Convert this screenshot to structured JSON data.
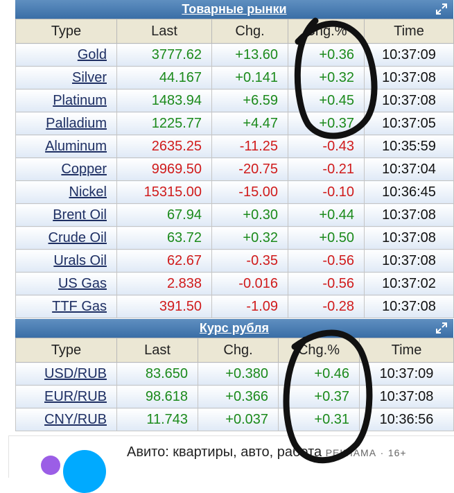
{
  "commodities": {
    "title": "Товарные рынки",
    "expand_icon": "expand-icon",
    "headers": [
      "Type",
      "Last",
      "Chg.",
      "Chg.%",
      "Time"
    ],
    "rows": [
      {
        "type": "Gold",
        "last": "3777.62",
        "chg": "+13.60",
        "pct": "+0.36",
        "time": "10:37:09",
        "dir": "pos"
      },
      {
        "type": "Silver",
        "last": "44.167",
        "chg": "+0.141",
        "pct": "+0.32",
        "time": "10:37:08",
        "dir": "pos"
      },
      {
        "type": "Platinum",
        "last": "1483.94",
        "chg": "+6.59",
        "pct": "+0.45",
        "time": "10:37:08",
        "dir": "pos"
      },
      {
        "type": "Palladium",
        "last": "1225.77",
        "chg": "+4.47",
        "pct": "+0.37",
        "time": "10:37:05",
        "dir": "pos"
      },
      {
        "type": "Aluminum",
        "last": "2635.25",
        "chg": "-11.25",
        "pct": "-0.43",
        "time": "10:35:59",
        "dir": "neg"
      },
      {
        "type": "Copper",
        "last": "9969.50",
        "chg": "-20.75",
        "pct": "-0.21",
        "time": "10:37:04",
        "dir": "neg"
      },
      {
        "type": "Nickel",
        "last": "15315.00",
        "chg": "-15.00",
        "pct": "-0.10",
        "time": "10:36:45",
        "dir": "neg"
      },
      {
        "type": "Brent Oil",
        "last": "67.94",
        "chg": "+0.30",
        "pct": "+0.44",
        "time": "10:37:08",
        "dir": "pos"
      },
      {
        "type": "Crude Oil",
        "last": "63.72",
        "chg": "+0.32",
        "pct": "+0.50",
        "time": "10:37:08",
        "dir": "pos"
      },
      {
        "type": "Urals Oil",
        "last": "62.67",
        "chg": "-0.35",
        "pct": "-0.56",
        "time": "10:37:08",
        "dir": "neg"
      },
      {
        "type": "US Gas",
        "last": "2.838",
        "chg": "-0.016",
        "pct": "-0.56",
        "time": "10:37:02",
        "dir": "neg"
      },
      {
        "type": "TTF Gas",
        "last": "391.50",
        "chg": "-1.09",
        "pct": "-0.28",
        "time": "10:37:08",
        "dir": "neg"
      }
    ]
  },
  "currency": {
    "title": "Курс рубля",
    "expand_icon": "expand-icon",
    "headers": [
      "Type",
      "Last",
      "Chg.",
      "Chg.%",
      "Time"
    ],
    "rows": [
      {
        "type": "USD/RUB",
        "last": "83.650",
        "chg": "+0.380",
        "pct": "+0.46",
        "time": "10:37:09",
        "dir": "pos"
      },
      {
        "type": "EUR/RUB",
        "last": "98.618",
        "chg": "+0.366",
        "pct": "+0.37",
        "time": "10:37:08",
        "dir": "pos"
      },
      {
        "type": "CNY/RUB",
        "last": "11.743",
        "chg": "+0.037",
        "pct": "+0.31",
        "time": "10:36:56",
        "dir": "pos"
      }
    ]
  },
  "ad": {
    "text": "Авито: квартиры, авто, работа",
    "label": "РЕКЛАМА",
    "age": "16+",
    "logo_icon": "avito-logo-icon"
  },
  "colors": {
    "positive": "#1b8a1b",
    "negative": "#d01b1b",
    "header_bar": "#3a6ea6",
    "link": "#1e2f63"
  }
}
